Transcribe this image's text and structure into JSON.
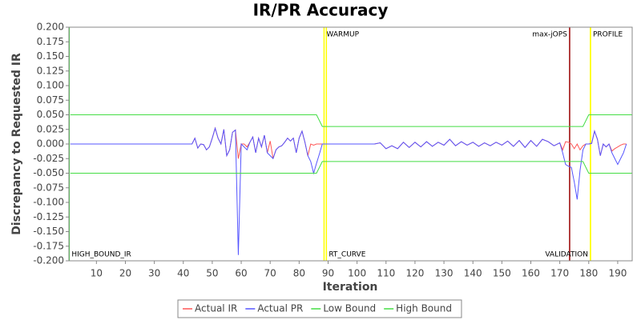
{
  "chart_data": {
    "type": "line",
    "title": "IR/PR Accuracy",
    "x_label": "Iteration",
    "y_label": "Discrepancy to Requested IR",
    "xlim": [
      0.5,
      195
    ],
    "ylim": [
      -0.2,
      0.2
    ],
    "xticks": [
      10,
      20,
      30,
      40,
      50,
      60,
      70,
      80,
      90,
      100,
      110,
      120,
      130,
      140,
      150,
      160,
      170,
      180,
      190
    ],
    "yticks": [
      {
        "value": -0.2,
        "label": "-0.200"
      },
      {
        "value": -0.175,
        "label": "-0.175"
      },
      {
        "value": -0.15,
        "label": "-0.150"
      },
      {
        "value": -0.125,
        "label": "-0.125"
      },
      {
        "value": -0.1,
        "label": "-0.100"
      },
      {
        "value": -0.075,
        "label": "-0.075"
      },
      {
        "value": -0.05,
        "label": "-0.050"
      },
      {
        "value": -0.025,
        "label": "-0.025"
      },
      {
        "value": 0,
        "label": "0.000"
      },
      {
        "value": 0.025,
        "label": "0.025"
      },
      {
        "value": 0.05,
        "label": "0.050"
      },
      {
        "value": 0.075,
        "label": "0.075"
      },
      {
        "value": 0.1,
        "label": "0.100"
      },
      {
        "value": 0.125,
        "label": "0.125"
      },
      {
        "value": 0.15,
        "label": "0.150"
      },
      {
        "value": 0.175,
        "label": "0.175"
      },
      {
        "value": 0.2,
        "label": "0.200"
      }
    ],
    "grid": false,
    "legend": "bottom",
    "markers": [
      {
        "x": 0.6,
        "color": "#44dd44",
        "label": "HIGH_BOUND_IR",
        "label_corner": "bottom-right"
      },
      {
        "x": 88.6,
        "color": "#ffff00",
        "label": "WARMUP",
        "label_corner": "top-right"
      },
      {
        "x": 89.4,
        "color": "#ffff00",
        "label": "RT_CURVE",
        "label_corner": "bottom-right"
      },
      {
        "x": 173.4,
        "color": "#990000",
        "label": "max-jOPS",
        "label_corner": "top-left"
      },
      {
        "x": 180.6,
        "color": "#ffff00",
        "label": "PROFILE",
        "label_corner": "top-right"
      },
      {
        "x": 180.6,
        "color": "#ffff00",
        "label": "VALIDATION",
        "label_corner": "bottom-left"
      }
    ],
    "series": [
      {
        "name": "Actual IR",
        "color": "#ff5555",
        "x": [
          1,
          43,
          44,
          45,
          46,
          47,
          48,
          49,
          50,
          51,
          52,
          53,
          54,
          55,
          56,
          57,
          58,
          59,
          60,
          61,
          62,
          63,
          64,
          65,
          66,
          67,
          68,
          69,
          70,
          71,
          72,
          73,
          74,
          75,
          76,
          77,
          78,
          79,
          80,
          81,
          82,
          83,
          84,
          85,
          86,
          87,
          88,
          106,
          108,
          110,
          112,
          114,
          116,
          118,
          120,
          122,
          124,
          126,
          128,
          130,
          132,
          134,
          136,
          138,
          140,
          142,
          144,
          146,
          148,
          150,
          152,
          154,
          156,
          158,
          160,
          162,
          164,
          166,
          168,
          170,
          171,
          172,
          173,
          174,
          175,
          176,
          177,
          178,
          179,
          180,
          181,
          182,
          183,
          184,
          185,
          186,
          187,
          188,
          189,
          190,
          191,
          192,
          193
        ],
        "values": [
          0,
          0,
          0.01,
          -0.007,
          0,
          -0.001,
          -0.01,
          -0.005,
          0.01,
          0.027,
          0.01,
          0,
          0.025,
          -0.02,
          -0.01,
          0.02,
          0.024,
          -0.025,
          0,
          0,
          -0.005,
          0.003,
          0.012,
          -0.015,
          0.01,
          -0.005,
          0.015,
          -0.015,
          0.005,
          -0.025,
          -0.01,
          -0.005,
          -0.003,
          0.003,
          0.01,
          0.005,
          0.01,
          -0.015,
          0.01,
          0.022,
          0.003,
          -0.02,
          0,
          -0.002,
          0,
          0,
          0,
          0,
          0.002,
          -0.008,
          -0.003,
          -0.008,
          0.003,
          -0.006,
          0.003,
          -0.005,
          0.004,
          -0.004,
          0.003,
          -0.002,
          0.008,
          -0.003,
          0.004,
          -0.002,
          0.003,
          -0.004,
          0.002,
          -0.003,
          0.003,
          -0.002,
          0.005,
          -0.004,
          0.006,
          -0.006,
          0.006,
          -0.004,
          0.008,
          0.004,
          -0.003,
          0.002,
          -0.01,
          0.004,
          0.003,
          0,
          -0.008,
          0,
          -0.01,
          -0.003,
          0,
          0,
          0.001,
          0.022,
          0.008,
          -0.02,
          0,
          -0.005,
          0,
          -0.012,
          -0.008,
          -0.005,
          -0.002,
          0,
          0
        ]
      },
      {
        "name": "Actual PR",
        "color": "#5555ff",
        "x": [
          1,
          43,
          44,
          45,
          46,
          47,
          48,
          49,
          50,
          51,
          52,
          53,
          54,
          55,
          56,
          57,
          58,
          59,
          60,
          61,
          62,
          63,
          64,
          65,
          66,
          67,
          68,
          69,
          70,
          71,
          72,
          73,
          74,
          75,
          76,
          77,
          78,
          79,
          80,
          81,
          82,
          83,
          84,
          85,
          86,
          87,
          88,
          106,
          108,
          110,
          112,
          114,
          116,
          118,
          120,
          122,
          124,
          126,
          128,
          130,
          132,
          134,
          136,
          138,
          140,
          142,
          144,
          146,
          148,
          150,
          152,
          154,
          156,
          158,
          160,
          162,
          164,
          166,
          168,
          170,
          171,
          172,
          173,
          174,
          175,
          176,
          177,
          178,
          179,
          180,
          181,
          182,
          183,
          184,
          185,
          186,
          187,
          188,
          189,
          190,
          191,
          192,
          193
        ],
        "values": [
          0,
          0,
          0.01,
          -0.007,
          0,
          -0.001,
          -0.01,
          -0.005,
          0.01,
          0.027,
          0.01,
          0,
          0.025,
          -0.02,
          -0.01,
          0.02,
          0.024,
          -0.19,
          0,
          -0.005,
          -0.01,
          0.003,
          0.012,
          -0.015,
          0.01,
          -0.005,
          0.015,
          -0.015,
          -0.02,
          -0.025,
          -0.01,
          -0.005,
          -0.003,
          0.003,
          0.01,
          0.005,
          0.01,
          -0.015,
          0.01,
          0.022,
          0.003,
          -0.02,
          -0.03,
          -0.05,
          -0.033,
          -0.017,
          0,
          0,
          0.002,
          -0.008,
          -0.003,
          -0.008,
          0.003,
          -0.006,
          0.003,
          -0.005,
          0.004,
          -0.004,
          0.003,
          -0.002,
          0.008,
          -0.003,
          0.004,
          -0.002,
          0.003,
          -0.004,
          0.002,
          -0.003,
          0.003,
          -0.002,
          0.005,
          -0.004,
          0.006,
          -0.006,
          0.006,
          -0.004,
          0.008,
          0.004,
          -0.003,
          0.002,
          -0.015,
          -0.035,
          -0.038,
          -0.04,
          -0.065,
          -0.095,
          -0.045,
          -0.01,
          0,
          0,
          0.001,
          0.022,
          0.008,
          -0.02,
          0,
          -0.005,
          0,
          -0.015,
          -0.025,
          -0.035,
          -0.025,
          -0.015,
          0
        ]
      },
      {
        "name": "Low Bound",
        "color": "#44dd44",
        "x": [
          1,
          86,
          88,
          178,
          180,
          195
        ],
        "values": [
          -0.05,
          -0.05,
          -0.03,
          -0.03,
          -0.05,
          -0.05
        ]
      },
      {
        "name": "High Bound",
        "color": "#44dd44",
        "x": [
          1,
          86,
          88,
          178,
          180,
          195
        ],
        "values": [
          0.05,
          0.05,
          0.03,
          0.03,
          0.05,
          0.05
        ]
      }
    ]
  }
}
